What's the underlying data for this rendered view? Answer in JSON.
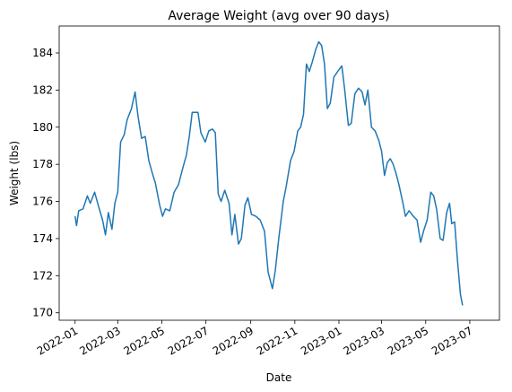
{
  "chart_data": {
    "type": "line",
    "title": "Average Weight (avg over 90 days)",
    "x_label": "Date",
    "y_label": "Weight (lbs)",
    "x": [
      "2022-01-01",
      "2022-01-03",
      "2022-01-06",
      "2022-01-12",
      "2022-01-18",
      "2022-01-22",
      "2022-01-28",
      "2022-02-02",
      "2022-02-08",
      "2022-02-12",
      "2022-02-16",
      "2022-02-21",
      "2022-02-25",
      "2022-03-01",
      "2022-03-05",
      "2022-03-10",
      "2022-03-14",
      "2022-03-20",
      "2022-03-25",
      "2022-03-29",
      "2022-04-03",
      "2022-04-08",
      "2022-04-13",
      "2022-04-18",
      "2022-04-22",
      "2022-04-28",
      "2022-05-02",
      "2022-05-06",
      "2022-05-12",
      "2022-05-18",
      "2022-05-24",
      "2022-05-30",
      "2022-06-04",
      "2022-06-08",
      "2022-06-12",
      "2022-06-20",
      "2022-06-24",
      "2022-06-30",
      "2022-07-05",
      "2022-07-10",
      "2022-07-14",
      "2022-07-18",
      "2022-07-22",
      "2022-07-27",
      "2022-08-02",
      "2022-08-06",
      "2022-08-10",
      "2022-08-15",
      "2022-08-19",
      "2022-08-24",
      "2022-08-28",
      "2022-09-02",
      "2022-09-08",
      "2022-09-14",
      "2022-09-20",
      "2022-09-25",
      "2022-10-01",
      "2022-10-05",
      "2022-10-10",
      "2022-10-16",
      "2022-10-20",
      "2022-10-26",
      "2022-10-31",
      "2022-11-05",
      "2022-11-09",
      "2022-11-13",
      "2022-11-17",
      "2022-11-21",
      "2022-11-25",
      "2022-11-30",
      "2022-12-04",
      "2022-12-08",
      "2022-12-12",
      "2022-12-16",
      "2022-12-20",
      "2022-12-25",
      "2023-01-01",
      "2023-01-05",
      "2023-01-09",
      "2023-01-14",
      "2023-01-18",
      "2023-01-23",
      "2023-01-28",
      "2023-02-02",
      "2023-02-06",
      "2023-02-10",
      "2023-02-15",
      "2023-02-20",
      "2023-02-25",
      "2023-03-01",
      "2023-03-05",
      "2023-03-09",
      "2023-03-13",
      "2023-03-17",
      "2023-03-21",
      "2023-03-25",
      "2023-03-30",
      "2023-04-03",
      "2023-04-08",
      "2023-04-14",
      "2023-04-19",
      "2023-04-24",
      "2023-04-28",
      "2023-05-03",
      "2023-05-08",
      "2023-05-12",
      "2023-05-16",
      "2023-05-21",
      "2023-05-25",
      "2023-05-30",
      "2023-06-03",
      "2023-06-06",
      "2023-06-10",
      "2023-06-14",
      "2023-06-18",
      "2023-06-21"
    ],
    "series": [
      {
        "name": "Weight",
        "color": "#1f77b4",
        "values": [
          175.2,
          174.7,
          175.5,
          175.6,
          176.3,
          175.9,
          176.5,
          175.8,
          175.0,
          174.2,
          175.4,
          174.5,
          175.9,
          176.5,
          179.2,
          179.6,
          180.4,
          181.0,
          181.9,
          180.6,
          179.4,
          179.5,
          178.2,
          177.5,
          177.0,
          175.8,
          175.2,
          175.6,
          175.5,
          176.5,
          176.9,
          177.8,
          178.5,
          179.5,
          180.8,
          180.8,
          179.7,
          179.2,
          179.8,
          179.9,
          179.7,
          176.4,
          176.0,
          176.6,
          175.9,
          174.2,
          175.3,
          173.7,
          174.0,
          175.8,
          176.2,
          175.3,
          175.2,
          175.0,
          174.4,
          172.2,
          171.3,
          172.3,
          174.1,
          176.0,
          176.8,
          178.2,
          178.7,
          179.8,
          180.0,
          180.7,
          183.4,
          183.0,
          183.5,
          184.2,
          184.6,
          184.4,
          183.4,
          181.0,
          181.3,
          182.7,
          183.1,
          183.3,
          182.0,
          180.1,
          180.2,
          181.8,
          182.1,
          181.9,
          181.2,
          182.0,
          180.0,
          179.8,
          179.3,
          178.7,
          177.4,
          178.1,
          178.3,
          178.0,
          177.5,
          176.9,
          176.0,
          175.2,
          175.5,
          175.2,
          175.0,
          173.8,
          174.4,
          175.0,
          176.5,
          176.3,
          175.6,
          174.0,
          173.9,
          175.4,
          175.9,
          174.8,
          174.9,
          172.8,
          171.0,
          170.4
        ]
      }
    ],
    "xlim": [
      "2021-12-10",
      "2023-08-11"
    ],
    "xticks": [
      {
        "value": "2022-01-01",
        "label": "2022-01"
      },
      {
        "value": "2022-03-01",
        "label": "2022-03"
      },
      {
        "value": "2022-05-01",
        "label": "2022-05"
      },
      {
        "value": "2022-07-01",
        "label": "2022-07"
      },
      {
        "value": "2022-09-01",
        "label": "2022-09"
      },
      {
        "value": "2022-11-01",
        "label": "2022-11"
      },
      {
        "value": "2023-01-01",
        "label": "2023-01"
      },
      {
        "value": "2023-03-01",
        "label": "2023-03"
      },
      {
        "value": "2023-05-01",
        "label": "2023-05"
      },
      {
        "value": "2023-07-01",
        "label": "2023-07"
      }
    ],
    "ylim": [
      169.6,
      185.45
    ],
    "yticks": [
      170,
      172,
      174,
      176,
      178,
      180,
      182,
      184
    ],
    "grid": false
  }
}
